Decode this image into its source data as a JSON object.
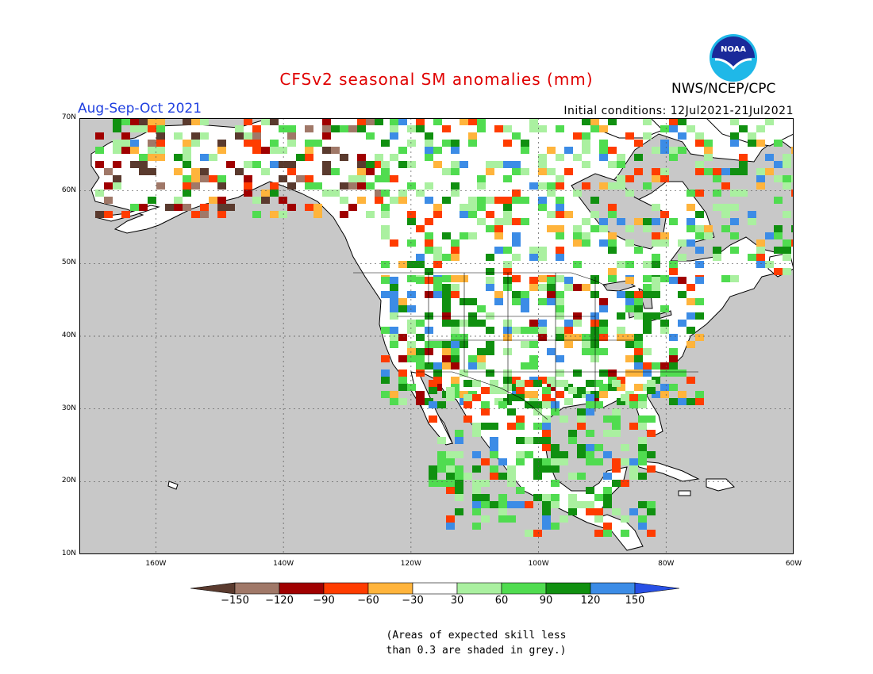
{
  "header": {
    "title": "CFSv2 seasonal SM anomalies (mm)",
    "period": "Aug-Sep-Oct 2021",
    "initial_conditions": "Initial conditions: 12Jul2021-21Jul2021",
    "agency": "NWS/NCEP/CPC",
    "logo_text": "NOAA"
  },
  "map": {
    "projection": "lat-lon",
    "lon_range": [
      -172,
      -60
    ],
    "lat_range": [
      10,
      70
    ],
    "lon_ticks": [
      "160W",
      "140W",
      "120W",
      "100W",
      "80W",
      "60W"
    ],
    "lat_ticks": [
      "70N",
      "60N",
      "50N",
      "40N",
      "30N",
      "20N",
      "10N"
    ],
    "gridlines": "dotted",
    "ocean_color": "#c8c8c8",
    "land_color": "#ffffff"
  },
  "colorbar": {
    "labels": [
      "-150",
      "-120",
      "-90",
      "-60",
      "-30",
      "30",
      "60",
      "90",
      "120",
      "150"
    ],
    "colors": [
      "#5a3a2e",
      "#a07868",
      "#a00000",
      "#ff3c00",
      "#ffb43c",
      "#ffffff",
      "#aaf0a0",
      "#50dc50",
      "#109010",
      "#3c8ce6",
      "#2850e6"
    ]
  },
  "note": [
    "(Areas of expected skill less",
    "than 0.3 are shaded in grey.)"
  ]
}
